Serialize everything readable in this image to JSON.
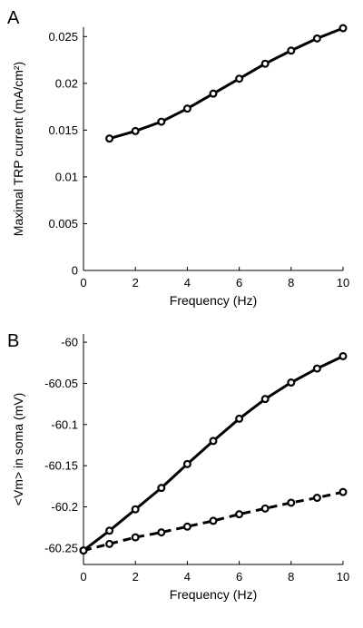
{
  "chart_data": [
    {
      "panel": "A",
      "type": "line",
      "xlabel": "Frequency (Hz)",
      "ylabel": "Maximal TRP current (mA/cm²)",
      "xlim": [
        0,
        10
      ],
      "ylim": [
        0,
        0.026
      ],
      "xticks": [
        0,
        2,
        4,
        6,
        8,
        10
      ],
      "yticks": [
        0,
        0.005,
        0.01,
        0.015,
        0.02,
        0.025
      ],
      "ytick_labels": [
        "0",
        "0.005",
        "0.01",
        "0.015",
        "0.02",
        "0.025"
      ],
      "grid": false,
      "series": [
        {
          "style": "solid",
          "marker": "open-circle",
          "x": [
            1,
            2,
            3,
            4,
            5,
            6,
            7,
            8,
            9,
            10
          ],
          "y": [
            0.0141,
            0.0149,
            0.0159,
            0.0173,
            0.0189,
            0.0205,
            0.0221,
            0.0235,
            0.0248,
            0.0259
          ]
        }
      ]
    },
    {
      "panel": "B",
      "type": "line",
      "xlabel": "Frequency (Hz)",
      "ylabel": "<Vm> in soma (mV)",
      "xlim": [
        0,
        10
      ],
      "ylim": [
        -60.27,
        -59.99
      ],
      "xticks": [
        0,
        2,
        4,
        6,
        8,
        10
      ],
      "yticks": [
        -60.25,
        -60.2,
        -60.15,
        -60.1,
        -60.05,
        -60
      ],
      "ytick_labels": [
        "-60.25",
        "-60.2",
        "-60.15",
        "-60.1",
        "-60.05",
        "-60"
      ],
      "grid": false,
      "series": [
        {
          "style": "solid",
          "marker": "open-circle",
          "x": [
            0,
            1,
            2,
            3,
            4,
            5,
            6,
            7,
            8,
            9,
            10
          ],
          "y": [
            -60.253,
            -60.229,
            -60.203,
            -60.177,
            -60.148,
            -60.12,
            -60.093,
            -60.069,
            -60.049,
            -60.032,
            -60.017
          ]
        },
        {
          "style": "dashed",
          "marker": "open-circle",
          "x": [
            0,
            1,
            2,
            3,
            4,
            5,
            6,
            7,
            8,
            9,
            10
          ],
          "y": [
            -60.253,
            -60.245,
            -60.237,
            -60.231,
            -60.224,
            -60.217,
            -60.209,
            -60.202,
            -60.195,
            -60.189,
            -60.182
          ]
        }
      ]
    }
  ]
}
